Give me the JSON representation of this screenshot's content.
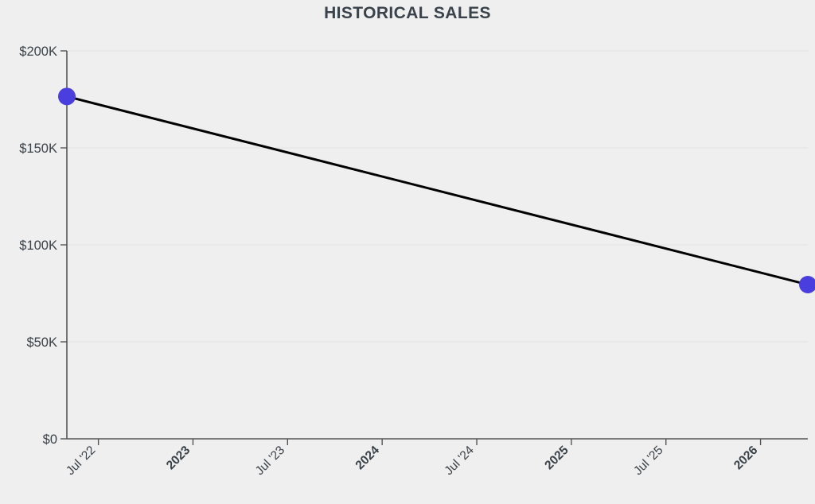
{
  "title": "HISTORICAL SALES",
  "colors": {
    "background": "#f0efef",
    "title_text": "#3a434b",
    "axis": "#555555",
    "tick_label": "#3a4249",
    "gridline": "#e4e4e4",
    "series_line": "#000000",
    "point_fill": "#4a3fde"
  },
  "chart_data": {
    "type": "line",
    "title": "HISTORICAL SALES",
    "xlabel": "",
    "ylabel": "",
    "grid": "horizontal",
    "legend_position": "none",
    "x_unit": "months-since-2022-01",
    "xlim": [
      4,
      51
    ],
    "ylim": [
      0,
      200000
    ],
    "y_ticks": [
      {
        "value": 0,
        "label": "$0"
      },
      {
        "value": 50000,
        "label": "$50K"
      },
      {
        "value": 100000,
        "label": "$100K"
      },
      {
        "value": 150000,
        "label": "$150K"
      },
      {
        "value": 200000,
        "label": "$200K"
      }
    ],
    "x_ticks": [
      {
        "value": 6,
        "label": "Jul '22",
        "bold": false
      },
      {
        "value": 12,
        "label": "2023",
        "bold": true
      },
      {
        "value": 18,
        "label": "Jul '23",
        "bold": false
      },
      {
        "value": 24,
        "label": "2024",
        "bold": true
      },
      {
        "value": 30,
        "label": "Jul '24",
        "bold": false
      },
      {
        "value": 36,
        "label": "2025",
        "bold": true
      },
      {
        "value": 42,
        "label": "Jul '25",
        "bold": false
      },
      {
        "value": 48,
        "label": "2026",
        "bold": true
      }
    ],
    "series": [
      {
        "name": "Historical Sales",
        "color": "#000000",
        "marker_color": "#4a3fde",
        "points": [
          {
            "x": 4,
            "x_date": "2022-05",
            "y": 176500
          },
          {
            "x": 51,
            "x_date": "2026-04",
            "y": 79500
          }
        ]
      }
    ]
  }
}
